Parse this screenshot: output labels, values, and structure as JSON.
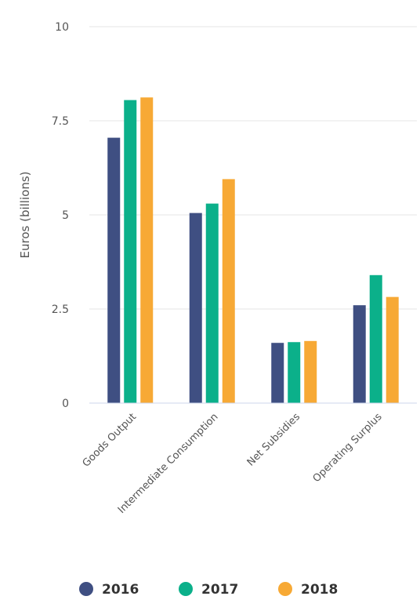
{
  "chart_data": {
    "type": "bar",
    "title": "",
    "xlabel": "",
    "ylabel": "Euros (billions)",
    "ylim": [
      0,
      10
    ],
    "yticks": [
      0,
      2.5,
      5,
      7.5,
      10
    ],
    "ytick_labels": [
      "0",
      "2.5",
      "5",
      "7.5",
      "10"
    ],
    "grid": true,
    "legend_position": "bottom",
    "categories": [
      "Goods Output",
      "Intermediate Consumption",
      "Net Subsidies",
      "Operating Surplus"
    ],
    "series": [
      {
        "name": "2016",
        "color": "#3f4f82",
        "values": [
          7.05,
          5.05,
          1.6,
          2.6
        ]
      },
      {
        "name": "2017",
        "color": "#0bb08a",
        "values": [
          8.05,
          5.3,
          1.62,
          3.4
        ]
      },
      {
        "name": "2018",
        "color": "#f7a935",
        "values": [
          8.12,
          5.95,
          1.65,
          2.82
        ]
      }
    ]
  }
}
